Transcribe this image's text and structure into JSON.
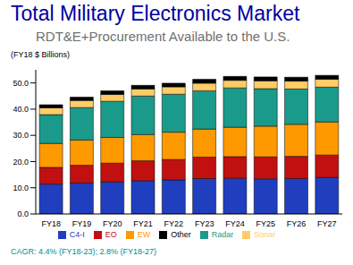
{
  "chart_data": {
    "type": "bar",
    "title": "Total Military Electronics Market",
    "subtitle": "RDT&E+Procurement Available to the U.S.",
    "y_label": "(FY18 $ Billions)",
    "annotation": "CAGR: 4.4% (FY18-23); 2.8% (FY18-27)",
    "categories": [
      "FY18",
      "FY19",
      "FY20",
      "FY21",
      "FY22",
      "FY23",
      "FY24",
      "FY25",
      "FY26",
      "FY27"
    ],
    "series": [
      {
        "name": "C4-I",
        "color": "#1f3fbf",
        "values": [
          11.4,
          11.8,
          12.2,
          12.7,
          13.0,
          13.5,
          13.6,
          13.4,
          13.5,
          13.9
        ]
      },
      {
        "name": "EO",
        "color": "#c01010",
        "values": [
          6.4,
          6.8,
          7.2,
          7.6,
          7.8,
          8.2,
          8.3,
          8.4,
          8.5,
          8.6
        ]
      },
      {
        "name": "EW",
        "color": "#ff9900",
        "values": [
          9.1,
          9.6,
          9.8,
          10.0,
          10.4,
          10.7,
          11.2,
          11.7,
          12.2,
          12.6
        ]
      },
      {
        "name": "Radar",
        "color": "#1a9a8a",
        "values": [
          11.0,
          12.4,
          13.8,
          14.7,
          14.5,
          14.6,
          15.0,
          14.3,
          13.5,
          13.3
        ]
      },
      {
        "name": "Sonar",
        "color": "#ffcc66",
        "values": [
          2.6,
          2.7,
          2.6,
          2.7,
          2.8,
          2.9,
          2.9,
          3.0,
          3.0,
          3.0
        ]
      },
      {
        "name": "Other",
        "color": "#000000",
        "values": [
          1.2,
          1.3,
          1.4,
          1.4,
          1.4,
          1.5,
          1.5,
          1.5,
          1.5,
          1.5
        ]
      }
    ],
    "ylim": [
      0,
      55
    ],
    "yticks": [
      {
        "value": 0,
        "label": "0.0"
      },
      {
        "value": 10,
        "label": "10.0"
      },
      {
        "value": 20,
        "label": "20.0"
      },
      {
        "value": 30,
        "label": "30.0"
      },
      {
        "value": 40,
        "label": "40.0"
      },
      {
        "value": 50,
        "label": "50.0"
      }
    ],
    "stacked": true,
    "grid": false,
    "legend": "bottom"
  }
}
